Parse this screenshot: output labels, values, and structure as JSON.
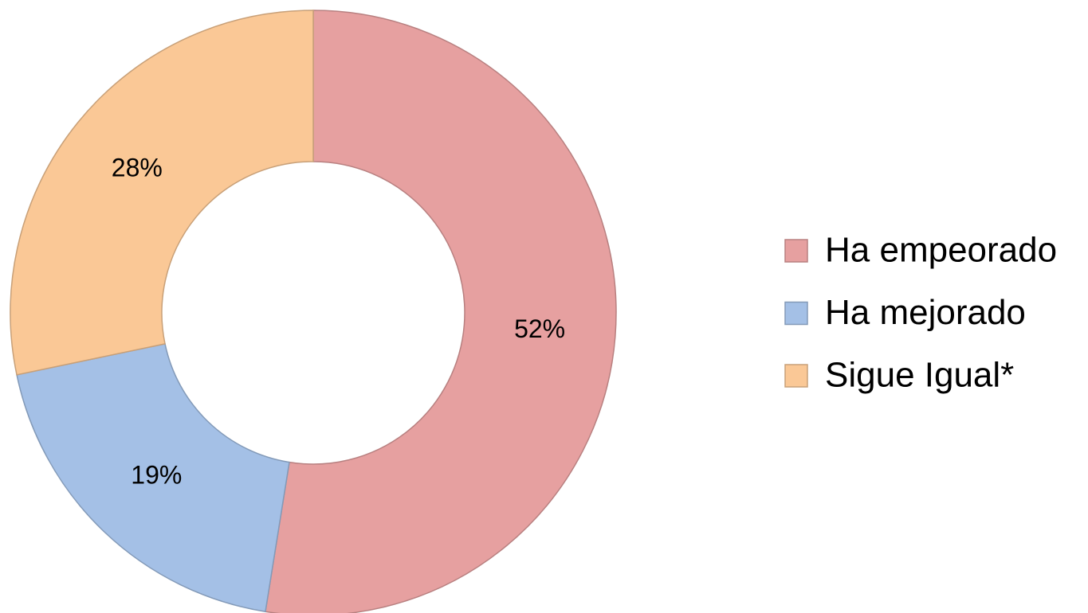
{
  "chart_data": {
    "type": "donut",
    "categories": [
      "Ha empeorado",
      "Ha mejorado",
      "Sigue Igual*"
    ],
    "values": [
      52,
      19,
      28
    ],
    "value_labels": [
      "52%",
      "19%",
      "28%"
    ],
    "colors": [
      "#e6a0a0",
      "#a4c0e6",
      "#fac896"
    ],
    "legend": "right"
  }
}
